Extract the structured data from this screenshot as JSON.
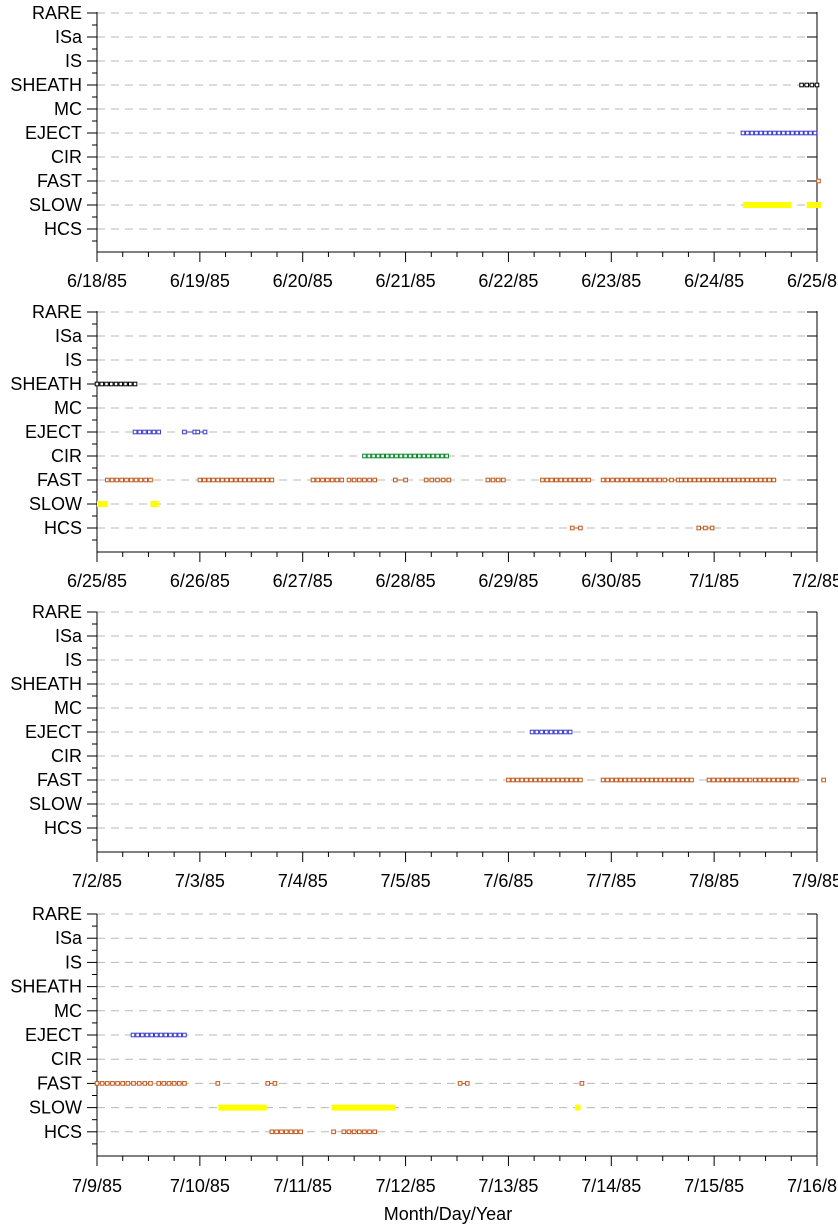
{
  "chart_data": {
    "type": "scatter",
    "xlabel": "Month/Day/Year",
    "categories": [
      "RARE",
      "ISa",
      "IS",
      "SHEATH",
      "MC",
      "EJECT",
      "CIR",
      "FAST",
      "SLOW",
      "HCS"
    ],
    "colors": {
      "SHEATH": "#000000",
      "EJECT": "#3a3acc",
      "CIR": "#0a8a2a",
      "FAST": "#c0581e",
      "HCS": "#c0581e",
      "SLOW": "#ffff00"
    },
    "grid": true,
    "panels": [
      {
        "xlim": [
          0,
          7
        ],
        "tick_labels": [
          "6/18/85",
          "6/19/85",
          "6/20/85",
          "6/21/85",
          "6/22/85",
          "6/23/85",
          "6/24/85",
          "6/25/85"
        ],
        "series": [
          {
            "category": "SHEATH",
            "segments": [
              [
                6.85,
                7.0
              ]
            ]
          },
          {
            "category": "EJECT",
            "segments": [
              [
                6.28,
                6.98
              ]
            ]
          },
          {
            "category": "FAST",
            "segments": [
              [
                7.0,
                7.02
              ]
            ]
          },
          {
            "category": "SLOW",
            "bars": [
              [
                6.28,
                6.75
              ],
              [
                6.9,
                7.12
              ]
            ]
          }
        ]
      },
      {
        "xlim": [
          0,
          7
        ],
        "tick_labels": [
          "6/25/85",
          "6/26/85",
          "6/27/85",
          "6/28/85",
          "6/29/85",
          "6/30/85",
          "7/1/85",
          "7/2/85"
        ],
        "series": [
          {
            "category": "SHEATH",
            "segments": [
              [
                0.0,
                0.37
              ]
            ]
          },
          {
            "category": "EJECT",
            "segments": [
              [
                0.37,
                0.6
              ],
              [
                0.85,
                0.95
              ],
              [
                0.98,
                1.05
              ]
            ]
          },
          {
            "category": "CIR",
            "segments": [
              [
                2.6,
                3.4
              ]
            ]
          },
          {
            "category": "FAST",
            "segments": [
              [
                0.1,
                0.52
              ],
              [
                1.0,
                1.7
              ],
              [
                2.1,
                2.38
              ],
              [
                2.45,
                2.7
              ],
              [
                2.9,
                3.0
              ],
              [
                3.2,
                3.42
              ],
              [
                3.8,
                3.95
              ],
              [
                4.33,
                4.78
              ],
              [
                4.92,
                5.47
              ],
              [
                5.52,
                5.65
              ],
              [
                5.68,
                6.58
              ]
            ]
          },
          {
            "category": "SLOW",
            "bars": [
              [
                0.0,
                0.1
              ],
              [
                0.52,
                0.6
              ]
            ]
          },
          {
            "category": "HCS",
            "segments": [
              [
                4.62,
                4.7
              ],
              [
                5.85,
                5.98
              ]
            ]
          }
        ]
      },
      {
        "xlim": [
          0,
          7
        ],
        "tick_labels": [
          "7/2/85",
          "7/3/85",
          "7/4/85",
          "7/5/85",
          "7/6/85",
          "7/7/85",
          "7/8/85",
          "7/9/85"
        ],
        "series": [
          {
            "category": "EJECT",
            "segments": [
              [
                4.23,
                4.6
              ]
            ]
          },
          {
            "category": "FAST",
            "segments": [
              [
                4.0,
                4.7
              ],
              [
                4.92,
                5.78
              ],
              [
                5.95,
                6.35
              ],
              [
                6.4,
                6.8
              ],
              [
                7.05,
                7.15
              ]
            ]
          }
        ]
      },
      {
        "xlim": [
          0,
          7
        ],
        "tick_labels": [
          "7/9/85",
          "7/10/85",
          "7/11/85",
          "7/12/85",
          "7/13/85",
          "7/14/85",
          "7/15/85",
          "7/16/85"
        ],
        "series": [
          {
            "category": "EJECT",
            "segments": [
              [
                0.35,
                0.85
              ]
            ]
          },
          {
            "category": "FAST",
            "segments": [
              [
                0.0,
                0.25
              ],
              [
                0.3,
                0.52
              ],
              [
                0.6,
                0.85
              ],
              [
                1.16,
                1.18
              ],
              [
                1.66,
                1.73
              ],
              [
                3.53,
                3.6
              ],
              [
                4.7,
                4.72
              ]
            ]
          },
          {
            "category": "SLOW",
            "bars": [
              [
                1.18,
                1.65
              ],
              [
                2.28,
                2.9
              ],
              [
                4.65,
                4.7
              ]
            ]
          },
          {
            "category": "HCS",
            "segments": [
              [
                1.7,
                1.98
              ],
              [
                2.28,
                2.32
              ],
              [
                2.4,
                2.7
              ]
            ]
          }
        ]
      }
    ]
  }
}
